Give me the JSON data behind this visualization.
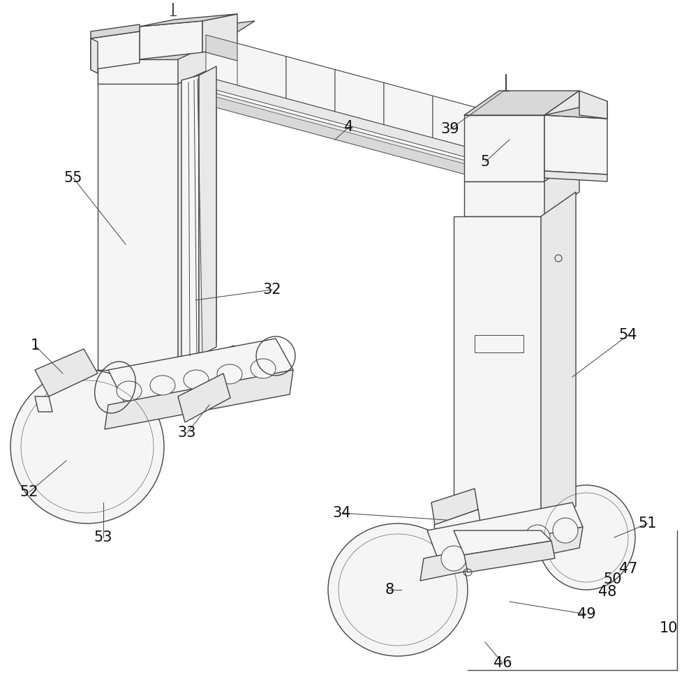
{
  "bg_color": "#ffffff",
  "line_color": "#444444",
  "label_color": "#111111",
  "label_fontsize": 15,
  "lw_main": 1.0,
  "lw_thin": 0.7,
  "fc_light": "#e8e8e8",
  "fc_mid": "#d8d8d8",
  "fc_dark": "#cccccc",
  "fc_white": "#f5f5f5"
}
